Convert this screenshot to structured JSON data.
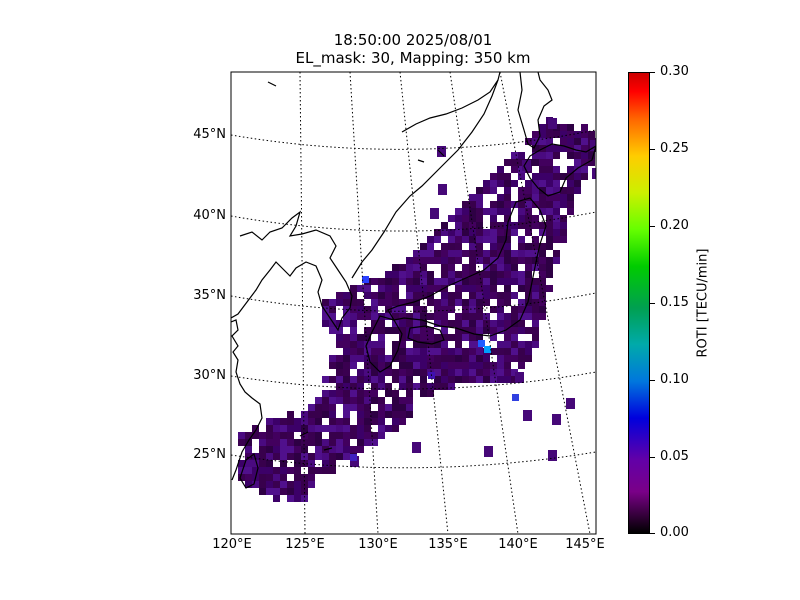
{
  "title": {
    "line1": "18:50:00 2025/08/01",
    "line2": "EL_mask: 30, Mapping: 350 km"
  },
  "axes": {
    "lat_ticks": [
      "45°N",
      "40°N",
      "35°N",
      "30°N",
      "25°N"
    ],
    "lon_ticks": [
      "120°E",
      "125°E",
      "130°E",
      "135°E",
      "140°E",
      "145°E"
    ]
  },
  "colorbar": {
    "label": "ROTI [TECU/min]",
    "ticks": [
      "0.30",
      "0.25",
      "0.20",
      "0.15",
      "0.10",
      "0.05",
      "0.00"
    ],
    "range": [
      0.0,
      0.3
    ],
    "colormap": "nipy_spectral"
  },
  "chart_data": {
    "type": "heatmap",
    "projection": "conic",
    "lon_range": [
      120,
      145
    ],
    "lat_range": [
      20,
      49
    ],
    "value_range": [
      0.0,
      0.3
    ],
    "typical_value": 0.03,
    "max_value": 0.08,
    "colors": {
      "background": "#ffffff",
      "coast": "#000000",
      "grid": "#000000",
      "low": "#3a0050",
      "mid": "#4a0a80",
      "high": "#2a40ff"
    }
  }
}
